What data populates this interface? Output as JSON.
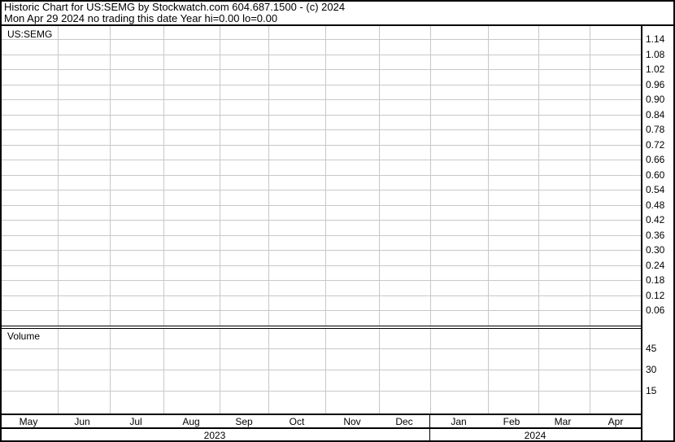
{
  "header": {
    "title": "Historic Chart for US:SEMG by Stockwatch.com 604.687.1500 - (c) 2024",
    "subtitle": "Mon Apr 29 2024    no trading this date  Year hi=0.00  lo=0.00"
  },
  "chart_data": [
    {
      "type": "line",
      "title": "US:SEMG",
      "series": [],
      "y_ticks": [
        "1.14",
        "1.08",
        "1.02",
        "0.96",
        "0.90",
        "0.84",
        "0.78",
        "0.72",
        "0.66",
        "0.60",
        "0.54",
        "0.48",
        "0.42",
        "0.36",
        "0.30",
        "0.24",
        "0.18",
        "0.12",
        "0.06"
      ],
      "ylim": [
        0.0,
        1.14
      ],
      "x_ticks": [
        "May",
        "Jun",
        "Jul",
        "Aug",
        "Sep",
        "Oct",
        "Nov",
        "Dec",
        "Jan",
        "Feb",
        "Mar",
        "Apr"
      ],
      "x_years": [
        "2023",
        "2024"
      ],
      "grid": true
    },
    {
      "type": "bar",
      "title": "Volume",
      "series": [],
      "y_ticks": [
        "45",
        "30",
        "15"
      ],
      "grid": true
    }
  ],
  "colors": {
    "grid": "#c8c8c8",
    "axis": "#000000",
    "background": "#ffffff"
  }
}
